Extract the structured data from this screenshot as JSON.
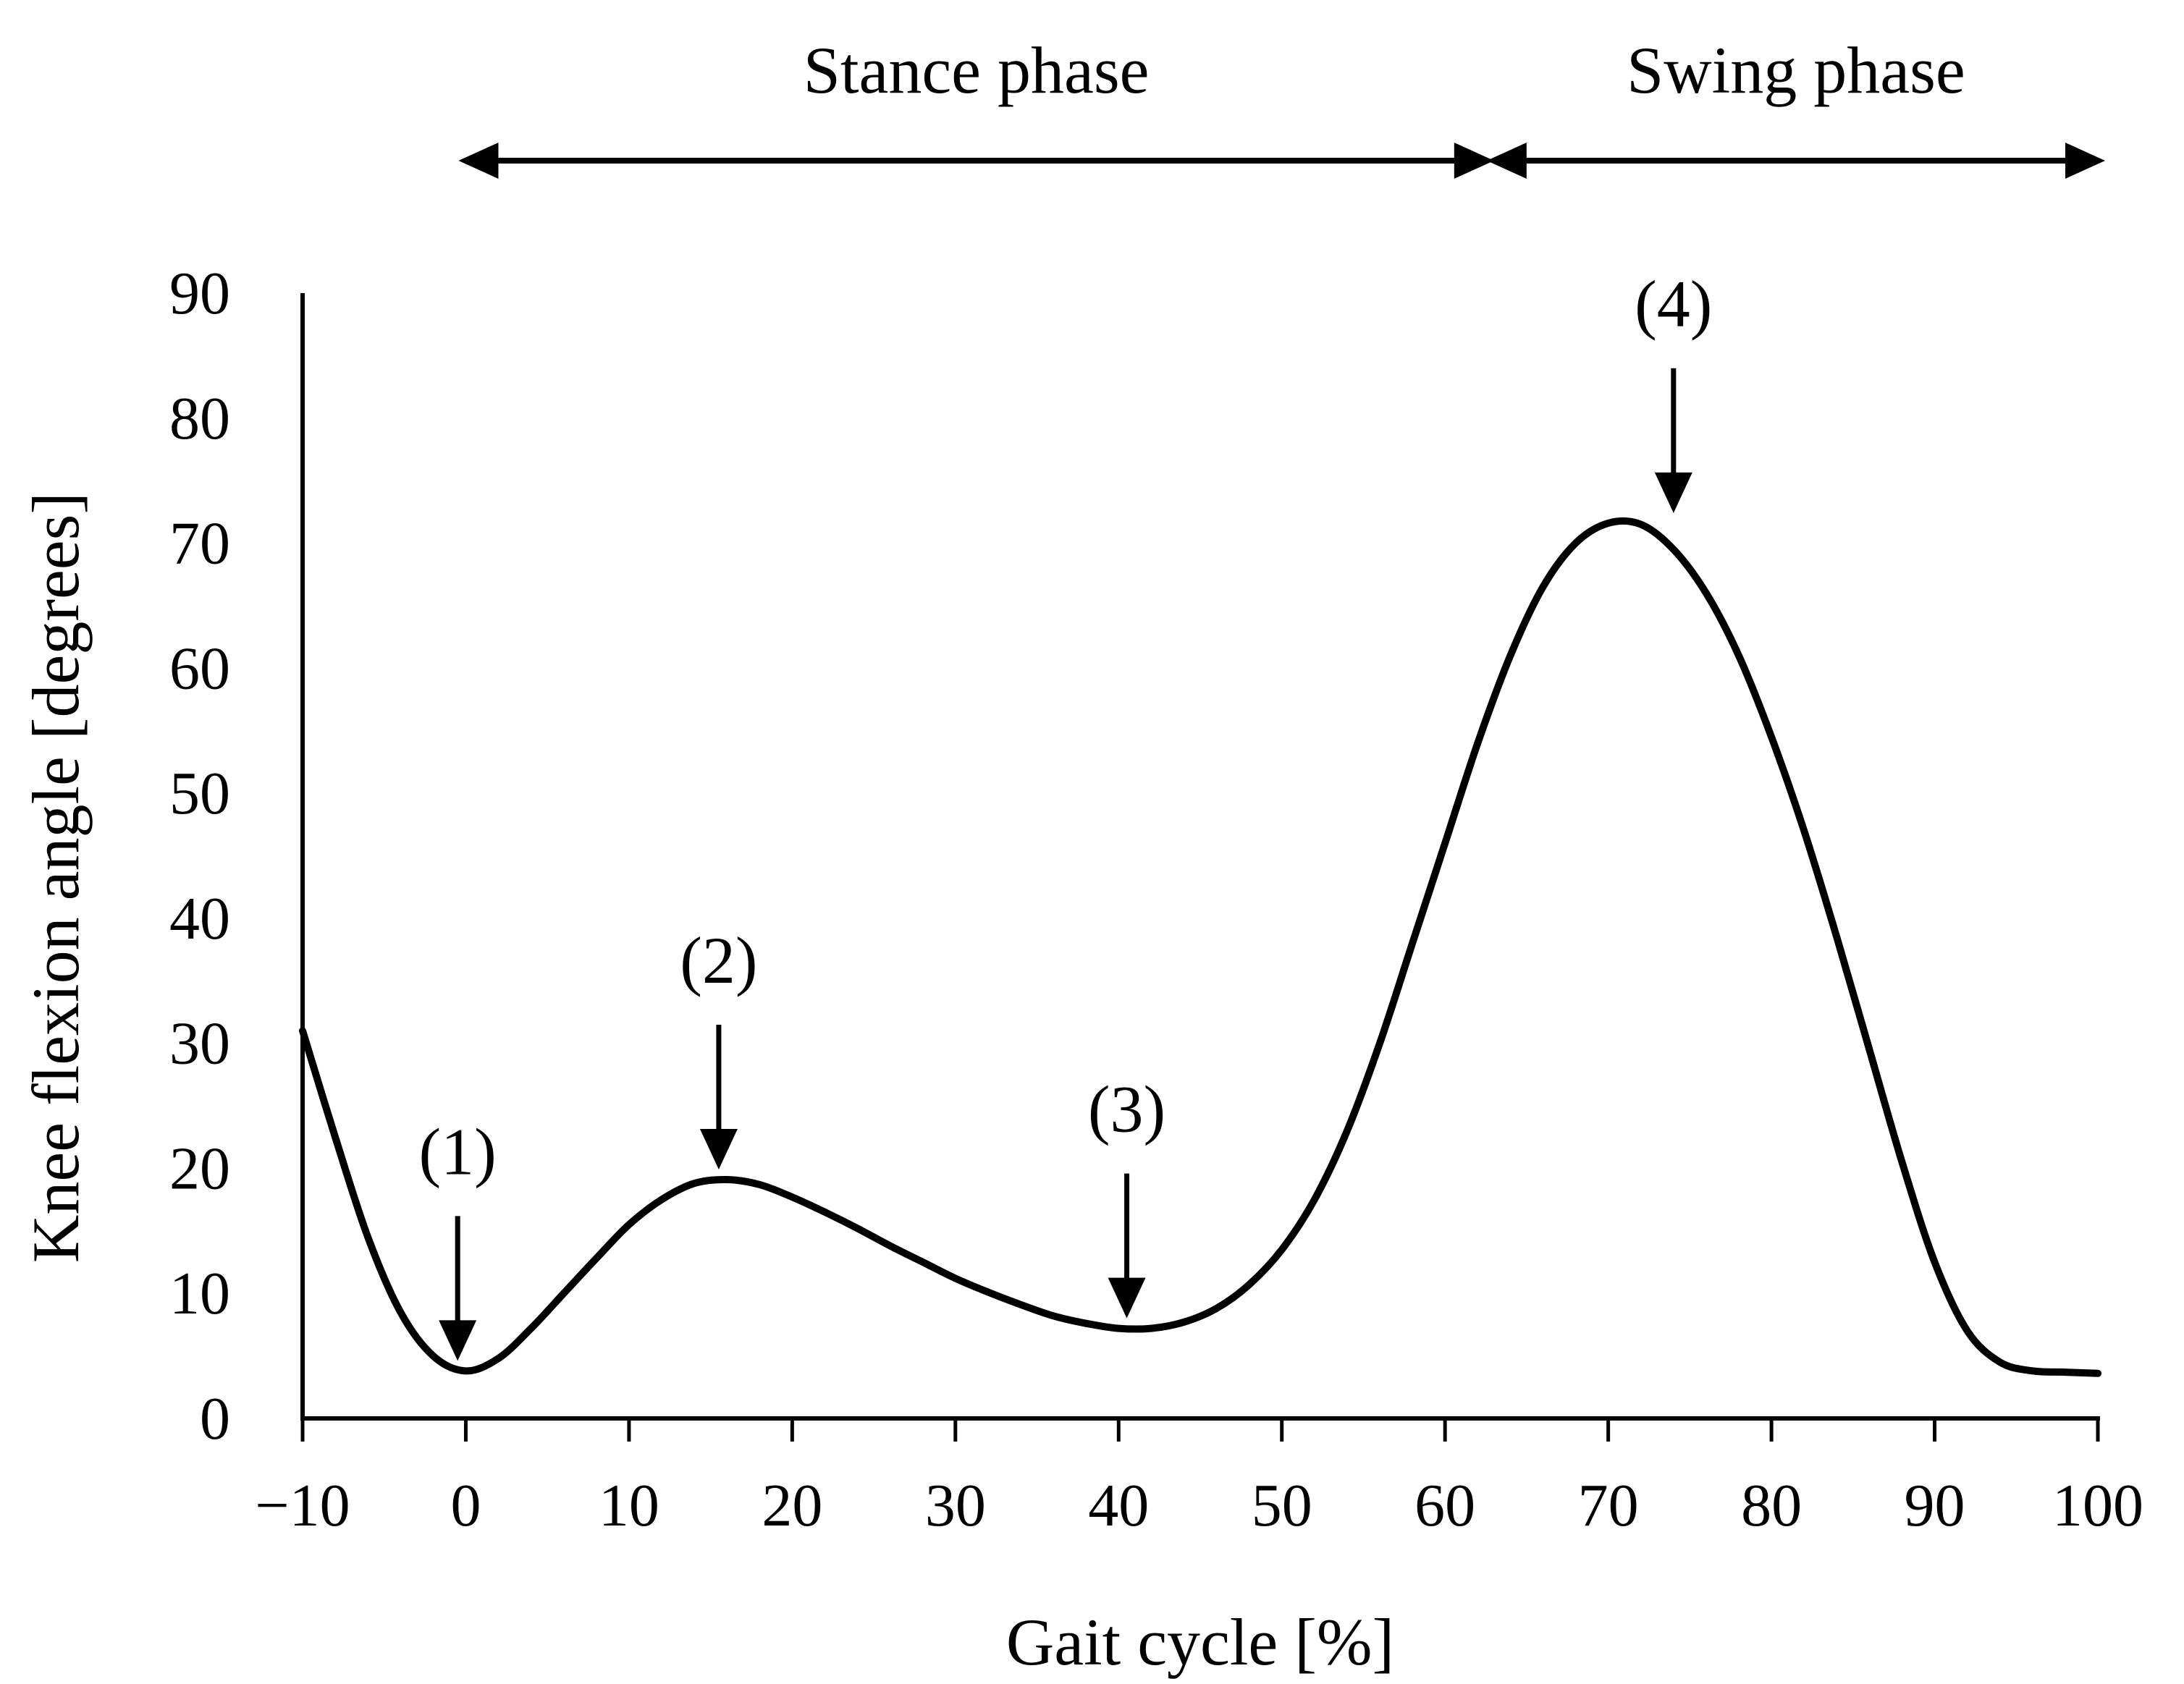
{
  "chart_data": {
    "type": "line",
    "title": "",
    "xlabel": "Gait cycle [%]",
    "ylabel": "Knee flexion angle [degrees]",
    "xlim": [
      -10,
      100
    ],
    "ylim": [
      0,
      90
    ],
    "xticks": [
      -10,
      0,
      10,
      20,
      30,
      40,
      50,
      60,
      70,
      80,
      90,
      100
    ],
    "xtick_labels": [
      "−10",
      "0",
      "10",
      "20",
      "30",
      "40",
      "50",
      "60",
      "70",
      "80",
      "90",
      "100"
    ],
    "yticks": [
      0,
      10,
      20,
      30,
      40,
      50,
      60,
      70,
      80,
      90
    ],
    "ytick_labels": [
      "0",
      "10",
      "20",
      "30",
      "40",
      "50",
      "60",
      "70",
      "80",
      "90"
    ],
    "grid": false,
    "series": [
      {
        "name": "Knee flexion angle",
        "color": "#000000",
        "x": [
          -10,
          -8,
          -6,
          -4,
          -2,
          0,
          2,
          4,
          6,
          8,
          10,
          12,
          14,
          16,
          18,
          20,
          22,
          24,
          26,
          28,
          30,
          32,
          34,
          36,
          38,
          40,
          42,
          44,
          46,
          48,
          50,
          52,
          54,
          56,
          58,
          60,
          62,
          64,
          66,
          68,
          70,
          72,
          74,
          76,
          78,
          80,
          82,
          84,
          86,
          88,
          90,
          92,
          94,
          96,
          98,
          100
        ],
        "y": [
          31,
          22.5,
          14.5,
          8.5,
          5,
          3.8,
          4.8,
          7.2,
          10,
          12.8,
          15.5,
          17.5,
          18.8,
          19.1,
          18.7,
          17.7,
          16.5,
          15.2,
          13.8,
          12.5,
          11.2,
          10.1,
          9.1,
          8.2,
          7.6,
          7.2,
          7.2,
          7.7,
          8.8,
          10.7,
          13.5,
          17.5,
          23,
          30,
          38,
          46,
          54,
          61,
          66.5,
          70,
          71.6,
          71.5,
          69.5,
          66,
          61,
          54.5,
          47,
          38.5,
          29.5,
          20.5,
          12.5,
          7,
          4.5,
          3.8,
          3.7,
          3.6
        ]
      }
    ],
    "annotations": [
      {
        "label": "(1)",
        "x": -0.5,
        "y": 3.8
      },
      {
        "label": "(2)",
        "x": 15.5,
        "y": 19.1
      },
      {
        "label": "(3)",
        "x": 40.5,
        "y": 7.2
      },
      {
        "label": "(4)",
        "x": 74,
        "y": 71.6
      }
    ],
    "phases": [
      {
        "label": "Stance phase",
        "start": 0,
        "end": 63
      },
      {
        "label": "Swing phase",
        "start": 63,
        "end": 100
      }
    ]
  }
}
